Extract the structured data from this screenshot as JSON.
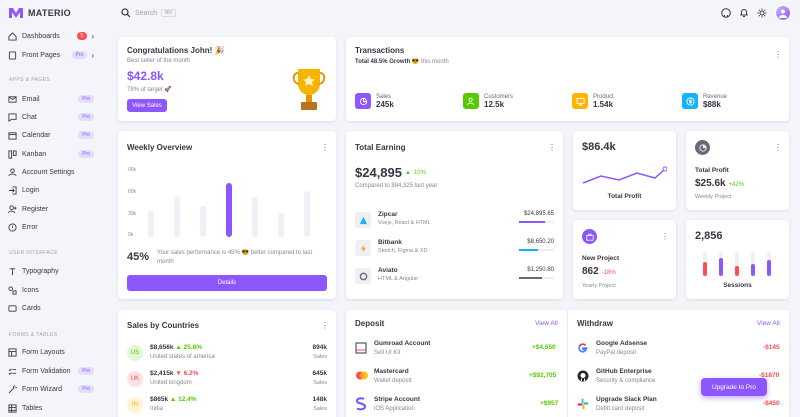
{
  "brand": {
    "name": "MATERIO",
    "accent": "#8c57ff"
  },
  "search": {
    "placeholder": "Search",
    "kbd": "⌘K"
  },
  "sidebar": {
    "items": [
      {
        "label": "Dashboards",
        "badge": "5"
      },
      {
        "label": "Front Pages",
        "badge": "Pro"
      }
    ],
    "sections": [
      {
        "title": "APPS & PAGES",
        "items": [
          {
            "label": "Email",
            "badge": "Pro"
          },
          {
            "label": "Chat",
            "badge": "Pro"
          },
          {
            "label": "Calendar",
            "badge": "Pro"
          },
          {
            "label": "Kanban",
            "badge": "Pro"
          },
          {
            "label": "Account Settings"
          },
          {
            "label": "Login"
          },
          {
            "label": "Register"
          },
          {
            "label": "Error"
          }
        ]
      },
      {
        "title": "USER INTERFACE",
        "items": [
          {
            "label": "Typography"
          },
          {
            "label": "Icons"
          },
          {
            "label": "Cards"
          }
        ]
      },
      {
        "title": "FORMS & TABLES",
        "items": [
          {
            "label": "Form Layouts"
          },
          {
            "label": "Form Validation",
            "badge": "Pro"
          },
          {
            "label": "Form Wizard",
            "badge": "Pro"
          },
          {
            "label": "Tables"
          }
        ]
      }
    ]
  },
  "congrats": {
    "title": "Congratulations John! 🎉",
    "subtitle": "Best seller of the month",
    "amount": "$42.8k",
    "target": "78% of target 🚀",
    "button": "View Sales"
  },
  "transactions": {
    "title": "Transactions",
    "growth": "Total 48.5% Growth",
    "growth_suffix": "😎 this month",
    "stats": [
      {
        "label": "Sales",
        "value": "245k",
        "color": "#8c57ff"
      },
      {
        "label": "Customers",
        "value": "12.5k",
        "color": "#56ca00"
      },
      {
        "label": "Product",
        "value": "1.54k",
        "color": "#ffb400"
      },
      {
        "label": "Revenue",
        "value": "$88k",
        "color": "#16b1ff"
      }
    ]
  },
  "weekly": {
    "title": "Weekly Overview",
    "percent": "45%",
    "text": "Your sales performance is 45% 😎 better compared to last month",
    "button": "Details",
    "y_ticks": [
      "90k",
      "60k",
      "30k",
      "0k"
    ]
  },
  "earning": {
    "title": "Total Earning",
    "amount": "$24,895",
    "change": "10%",
    "compare": "Compared to $84,325 last year",
    "items": [
      {
        "name": "Zipcar",
        "sub": "Vuejs, React & HTML",
        "value": "$24,895.65",
        "progress": 0.75,
        "color": "#8c57ff"
      },
      {
        "name": "Bitbank",
        "sub": "Sketch, Figma & XD",
        "value": "$8,650.20",
        "progress": 0.55,
        "color": "#16b1ff"
      },
      {
        "name": "Aviato",
        "sub": "HTML & Angular",
        "value": "$1,250.80",
        "progress": 0.65,
        "color": "#6d6777"
      }
    ]
  },
  "profit_chart": {
    "value": "$86.4k",
    "label": "Total Profit"
  },
  "total_profit": {
    "label": "Total Profit",
    "value": "$25.6k",
    "change": "+42%",
    "sub": "Weekly Project"
  },
  "new_project": {
    "label": "New Project",
    "value": "862",
    "change": "-18%",
    "sub": "Yearly Project"
  },
  "sessions": {
    "value": "2,856",
    "label": "Sessions"
  },
  "countries": {
    "title": "Sales by Countries",
    "rows": [
      {
        "code": "US",
        "amount": "$8,656k",
        "change": "25.8%",
        "up": true,
        "name": "United states of america",
        "sales": "894k",
        "sales_label": "Sales",
        "bg": "#e3f7d4",
        "fg": "#56ca00"
      },
      {
        "code": "UK",
        "amount": "$2,415k",
        "change": "6.2%",
        "up": false,
        "name": "United kingdom",
        "sales": "645k",
        "sales_label": "Sales",
        "bg": "#ffe2e3",
        "fg": "#ff4c51"
      },
      {
        "code": "IN",
        "amount": "$865k",
        "change": "12.4%",
        "up": true,
        "name": "India",
        "sales": "148k",
        "sales_label": "Sales",
        "bg": "#fff3d6",
        "fg": "#ffb400"
      }
    ]
  },
  "deposit": {
    "title": "Deposit",
    "view_all": "View All",
    "rows": [
      {
        "name": "Gumroad Account",
        "sub": "Sell UI Kit",
        "amount": "+$4,650"
      },
      {
        "name": "Mastercard",
        "sub": "Wallet deposit",
        "amount": "+$92,705"
      },
      {
        "name": "Stripe Account",
        "sub": "iOS Application",
        "amount": "+$957"
      }
    ]
  },
  "withdraw": {
    "title": "Withdraw",
    "view_all": "View All",
    "rows": [
      {
        "name": "Google Adsense",
        "sub": "PayPal deposit",
        "amount": "-$145"
      },
      {
        "name": "GitHub Enterprise",
        "sub": "Security & compliance",
        "amount": "-$1870"
      },
      {
        "name": "Upgrade Slack Plan",
        "sub": "Debit card deposit",
        "amount": "-$450"
      }
    ]
  },
  "upgrade": {
    "label": "Upgrade to Pro"
  },
  "ui": {
    "dots": "⋮",
    "more_chevron": "›",
    "trend_up": "▲",
    "trend_down": "▼"
  }
}
